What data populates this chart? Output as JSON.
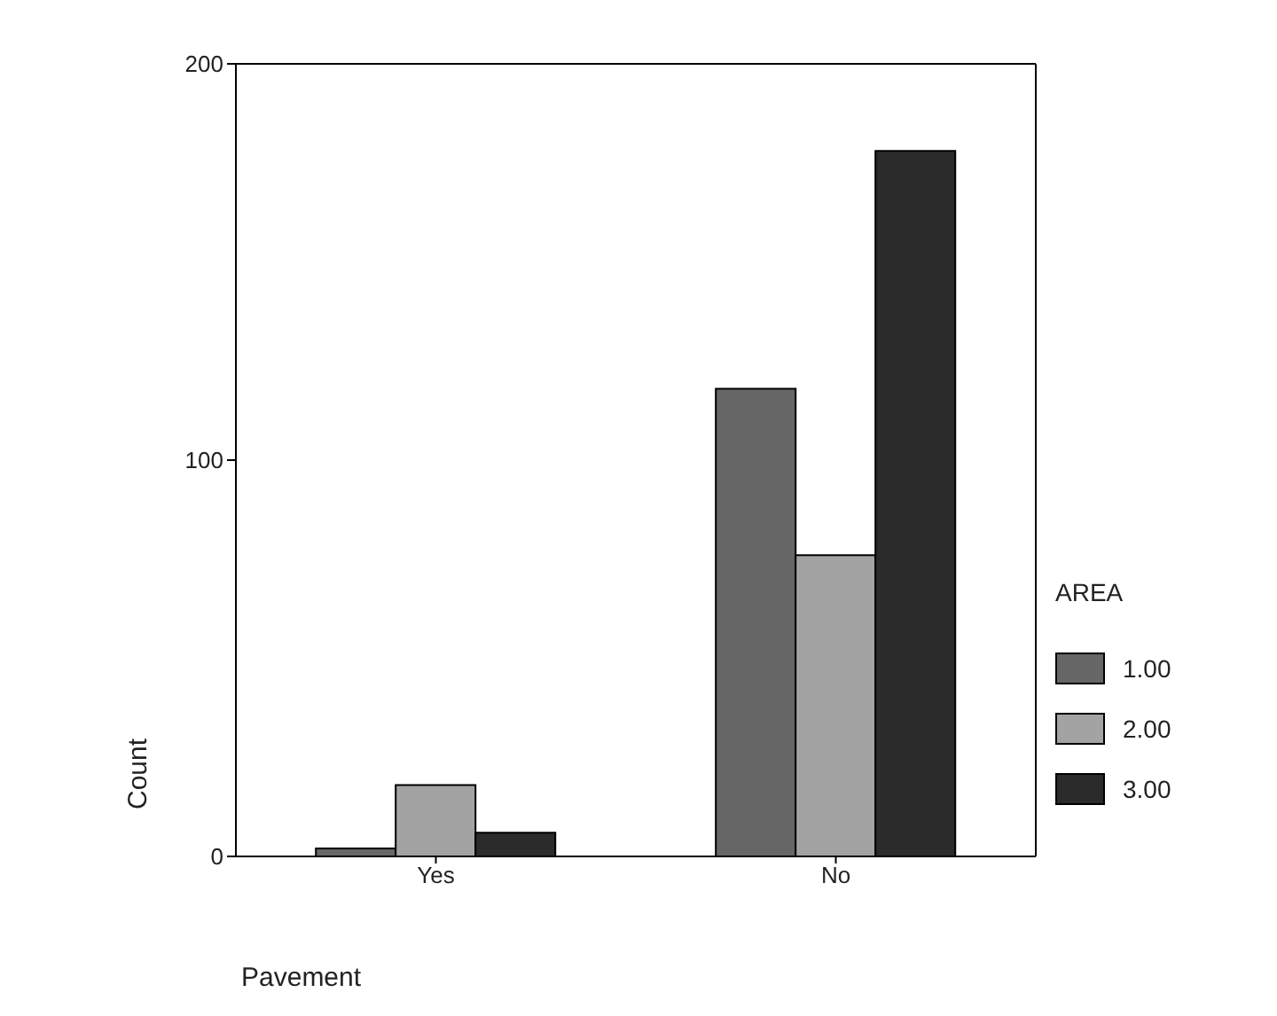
{
  "chart_data": {
    "type": "bar",
    "xlabel": "Pavement",
    "ylabel": "Count",
    "legend_title": "AREA",
    "categories": [
      "Yes",
      "No"
    ],
    "series": [
      {
        "name": "1.00",
        "color": "#666666",
        "values": [
          2,
          118
        ]
      },
      {
        "name": "2.00",
        "color": "#a3a3a3",
        "values": [
          18,
          76
        ]
      },
      {
        "name": "3.00",
        "color": "#2b2b2b",
        "values": [
          6,
          178
        ]
      }
    ],
    "ylim": [
      0,
      200
    ],
    "yticks": [
      0,
      100,
      200
    ],
    "legend": "right",
    "grid": false
  }
}
